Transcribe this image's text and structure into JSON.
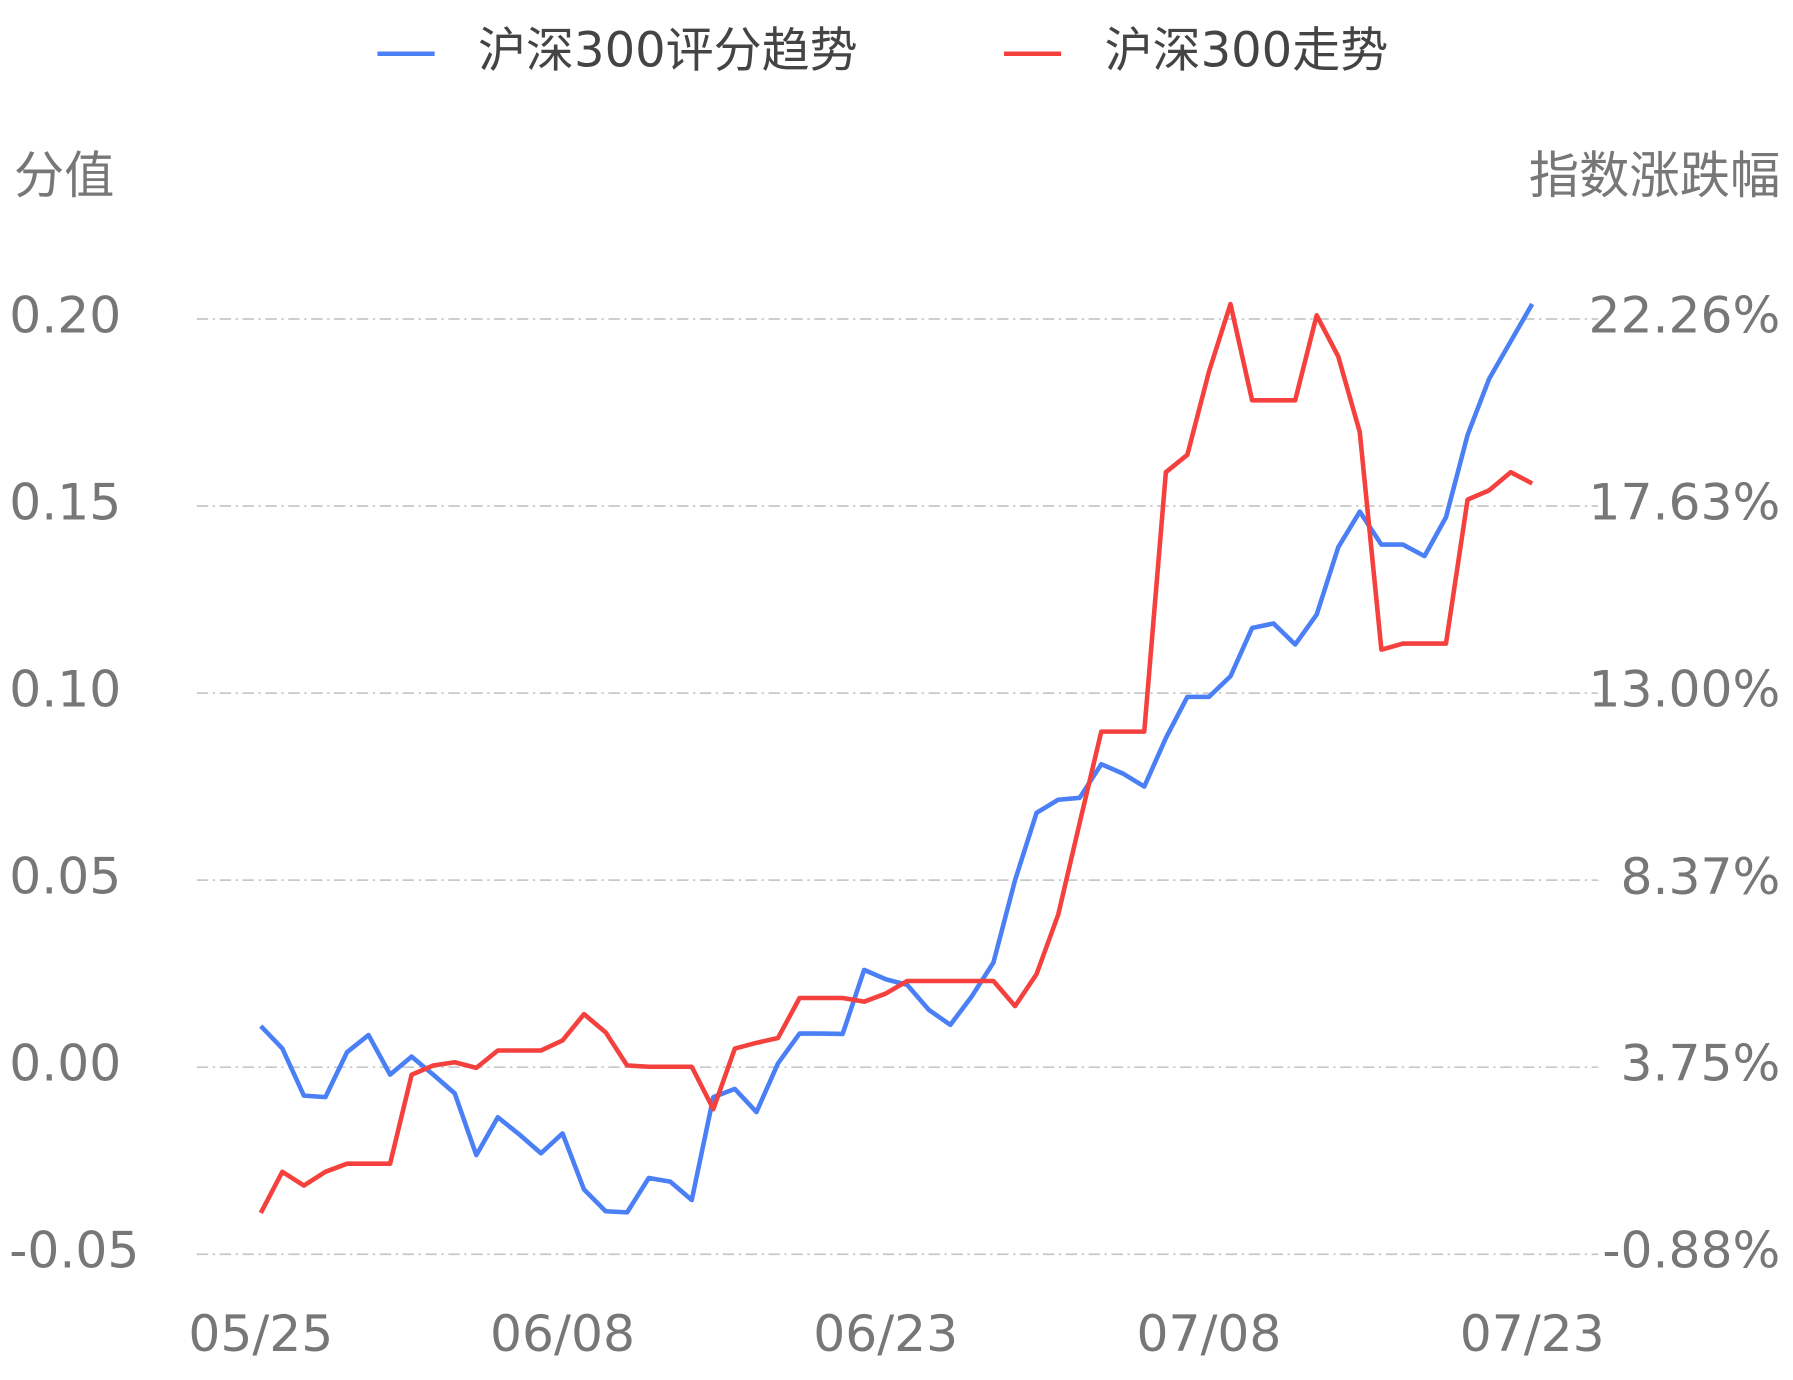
{
  "chart_data": {
    "type": "line",
    "ylabel": "分值",
    "y2label": "指数涨跌幅",
    "categories": [
      "05/25",
      null,
      null,
      null,
      null,
      null,
      null,
      null,
      null,
      null,
      null,
      null,
      null,
      null,
      "06/08",
      null,
      null,
      null,
      null,
      null,
      null,
      null,
      null,
      null,
      null,
      null,
      null,
      null,
      null,
      "06/23",
      null,
      null,
      null,
      null,
      null,
      null,
      null,
      null,
      null,
      null,
      null,
      null,
      null,
      null,
      "07/08",
      null,
      null,
      null,
      null,
      null,
      null,
      null,
      null,
      null,
      null,
      null,
      null,
      null,
      null,
      "07/23"
    ],
    "series": [
      {
        "name": "沪深300评分趋势",
        "color": "#4a7ff5",
        "axis": "y",
        "values": [
          0.011,
          0.005,
          -0.0076,
          -0.008,
          0.004,
          0.0086,
          -0.002,
          0.0028,
          -0.002,
          -0.007,
          -0.0235,
          -0.0134,
          -0.018,
          -0.023,
          -0.0177,
          -0.0327,
          -0.0385,
          -0.0388,
          -0.0296,
          -0.0306,
          -0.0355,
          -0.008,
          -0.0058,
          -0.012,
          0.001,
          0.009,
          0.009,
          0.0089,
          0.026,
          0.0235,
          0.022,
          0.0153,
          0.0113,
          0.019,
          0.028,
          0.05,
          0.068,
          0.0715,
          0.072,
          0.081,
          0.0785,
          0.075,
          0.088,
          0.099,
          0.099,
          0.1045,
          0.1174,
          0.1186,
          0.113,
          0.121,
          0.139,
          0.1485,
          0.1397,
          0.1397,
          0.1366,
          0.147,
          0.169,
          0.184,
          0.194,
          0.204
        ]
      },
      {
        "name": "沪深300走势",
        "color": "#f5413d",
        "axis": "y2",
        "values": [
          0.14,
          1.16,
          0.82,
          1.16,
          1.36,
          1.36,
          1.36,
          3.56,
          3.79,
          3.87,
          3.73,
          4.16,
          4.16,
          4.16,
          4.41,
          5.06,
          4.61,
          3.79,
          3.76,
          3.76,
          3.76,
          2.71,
          4.21,
          4.35,
          4.47,
          5.46,
          5.46,
          5.46,
          5.37,
          5.57,
          5.88,
          5.88,
          5.88,
          5.88,
          5.88,
          5.26,
          6.05,
          7.52,
          9.79,
          12.05,
          12.05,
          12.05,
          18.47,
          18.9,
          20.96,
          22.63,
          20.25,
          20.25,
          20.25,
          22.35,
          21.33,
          19.46,
          14.08,
          14.23,
          14.23,
          14.23,
          17.79,
          18.02,
          18.47,
          18.19
        ]
      }
    ],
    "ylim": [
      -0.05,
      0.2
    ],
    "yticks": [
      {
        "value": -0.05,
        "label": "-0.05"
      },
      {
        "value": 0,
        "label": "0.00"
      },
      {
        "value": 0.05,
        "label": "0.05"
      },
      {
        "value": 0.1,
        "label": "0.10"
      },
      {
        "value": 0.15,
        "label": "0.15"
      },
      {
        "value": 0.2,
        "label": "0.20"
      }
    ],
    "y2lim": [
      -0.88,
      22.26
    ],
    "y2ticks": [
      {
        "value": -0.88,
        "label": "-0.88%"
      },
      {
        "value": 3.75,
        "label": "3.75%"
      },
      {
        "value": 8.37,
        "label": "8.37%"
      },
      {
        "value": 13.0,
        "label": "13.00%"
      },
      {
        "value": 17.63,
        "label": "17.63%"
      },
      {
        "value": 22.26,
        "label": "22.26%"
      }
    ],
    "grid": true,
    "legend": "top"
  }
}
